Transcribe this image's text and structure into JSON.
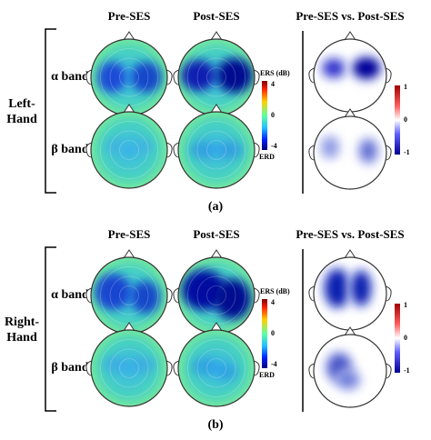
{
  "panels": [
    {
      "caption": "(a)",
      "group_label": [
        "Left-",
        "Hand"
      ],
      "columns": [
        "Pre-SES",
        "Post-SES",
        "Pre-SES vs. Post-SES"
      ],
      "rows": [
        "α band",
        "β band"
      ],
      "colorbar": {
        "title": "ERS (dB)",
        "ticks": [
          4,
          0,
          -4
        ],
        "bottom_label": "ERD"
      },
      "diff_colorbar": {
        "ticks": [
          1,
          0,
          -1
        ]
      }
    },
    {
      "caption": "(b)",
      "group_label": [
        "Right-",
        "Hand"
      ],
      "columns": [
        "Pre-SES",
        "Post-SES",
        "Pre-SES vs. Post-SES"
      ],
      "rows": [
        "α band",
        "β band"
      ],
      "colorbar": {
        "title": "ERS (dB)",
        "ticks": [
          4,
          0,
          -4
        ],
        "bottom_label": "ERD"
      },
      "diff_colorbar": {
        "ticks": [
          1,
          0,
          -1
        ]
      }
    }
  ]
}
